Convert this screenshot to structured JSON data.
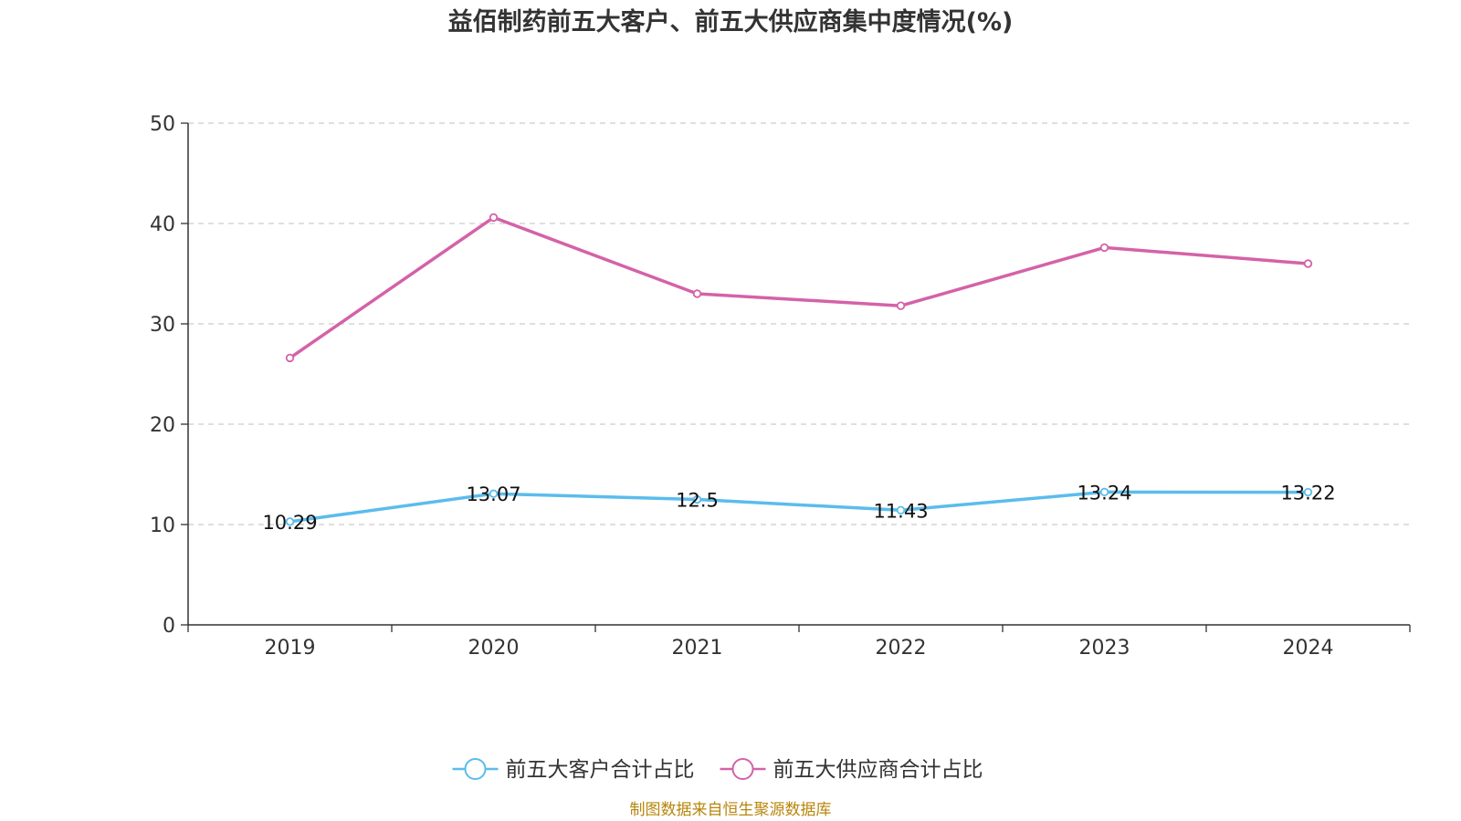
{
  "chart_data": {
    "type": "line",
    "title": "益佰制药前五大客户、前五大供应商集中度情况(%)",
    "categories": [
      "2019",
      "2020",
      "2021",
      "2022",
      "2023",
      "2024"
    ],
    "ylim": [
      0,
      50
    ],
    "yticks": [
      "0",
      "10",
      "20",
      "30",
      "40",
      "50"
    ],
    "grid": true,
    "legend_position": "bottom",
    "series": [
      {
        "name": "前五大客户合计占比",
        "color": "#5bbcec",
        "values": [
          10.29,
          13.07,
          12.5,
          11.43,
          13.24,
          13.22
        ],
        "labels": [
          "10.29",
          "13.07",
          "12.5",
          "11.43",
          "13.24",
          "13.22"
        ],
        "show_labels": true
      },
      {
        "name": "前五大供应商合计占比",
        "color": "#d462a8",
        "values": [
          26.6,
          40.6,
          33.0,
          31.8,
          37.6,
          36.0
        ],
        "show_labels": false
      }
    ],
    "source": "制图数据来自恒生聚源数据库"
  }
}
